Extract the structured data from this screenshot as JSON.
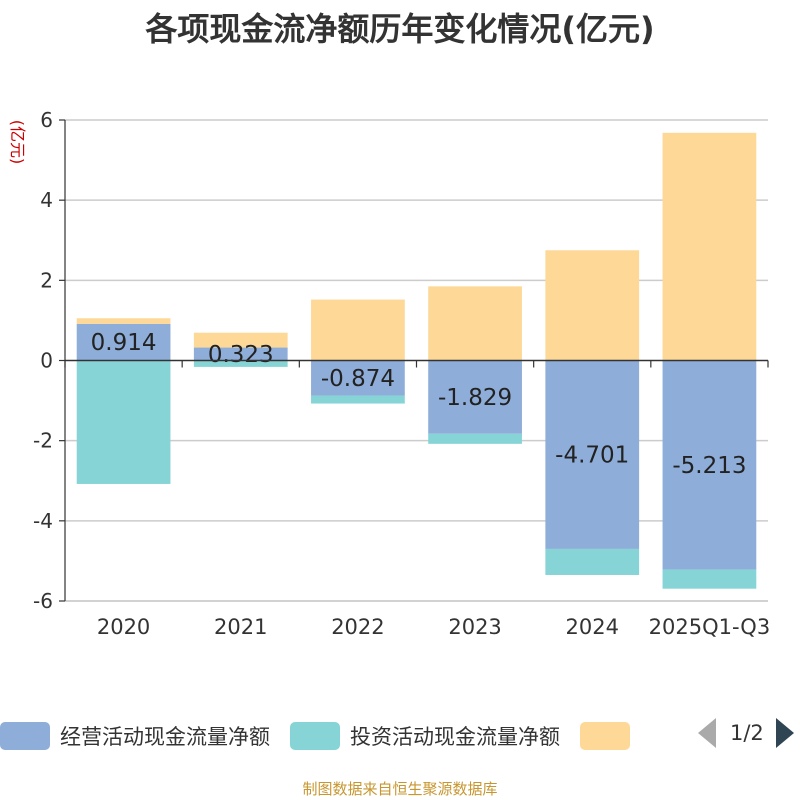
{
  "colors": {
    "operating": "#8eadd9",
    "investing": "#87d4d7",
    "financing": "#fed897",
    "grid": "#cccccc",
    "axis": "#333333",
    "axis_label": "#cc0000",
    "footer": "#c8962f"
  },
  "legend": {
    "items": [
      "经营活动现金流量净额",
      "投资活动现金流量净额",
      ""
    ],
    "page": "1/2"
  },
  "footer": "制图数据来自恒生聚源数据库",
  "chart_data": {
    "type": "bar",
    "stacked": true,
    "title": "各项现金流净额历年变化情况(亿元)",
    "ylabel": "(亿元)",
    "xlabel": "",
    "ylim": [
      -6,
      6
    ],
    "yticks": [
      -6,
      -4,
      -2,
      0,
      2,
      4,
      6
    ],
    "grid": true,
    "legend_position": "bottom",
    "categories": [
      "2020",
      "2021",
      "2022",
      "2023",
      "2024",
      "2025Q1-Q3"
    ],
    "series": [
      {
        "name": "经营活动现金流量净额",
        "values": [
          0.914,
          0.323,
          -0.874,
          -1.829,
          -4.701,
          -5.213
        ],
        "labels": [
          "0.914",
          "0.323",
          "-0.874",
          "-1.829",
          "-4.701",
          "-5.213"
        ]
      },
      {
        "name": "投资活动现金流量净额",
        "values": [
          -3.08,
          -0.16,
          -0.2,
          -0.25,
          -0.65,
          -0.48
        ]
      },
      {
        "name": "",
        "values": [
          0.14,
          0.37,
          1.52,
          1.85,
          2.75,
          5.68
        ]
      }
    ]
  }
}
